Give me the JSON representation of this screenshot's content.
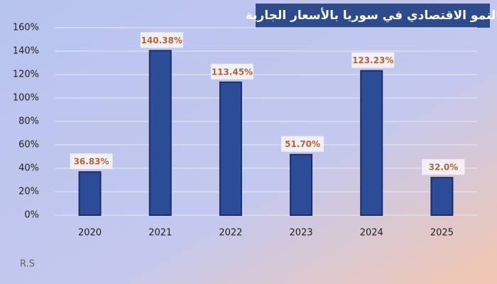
{
  "chart_data": {
    "type": "bar",
    "title": "النمو الاقتصادي في سوريا بالأسعار الجارية",
    "categories": [
      "2020",
      "2021",
      "2022",
      "2023",
      "2024",
      "2025"
    ],
    "values": [
      36.83,
      140.38,
      113.45,
      51.7,
      123.23,
      32.0
    ],
    "value_labels": [
      "36.83%",
      "140.38%",
      "113.45%",
      "51.70%",
      "123.23%",
      "32.0%"
    ],
    "color": "#2c4c98",
    "ylim": [
      0,
      160
    ],
    "yticks": [
      {
        "value": 0,
        "label": "0%"
      },
      {
        "value": 20,
        "label": "20%"
      },
      {
        "value": 40,
        "label": "40%"
      },
      {
        "value": 60,
        "label": "60%"
      },
      {
        "value": 80,
        "label": "80%"
      },
      {
        "value": 100,
        "label": "100%"
      },
      {
        "value": 120,
        "label": "120%"
      },
      {
        "value": 140,
        "label": "140%"
      },
      {
        "value": 160,
        "label": "160%"
      }
    ],
    "grid": true,
    "annotation": "R.S"
  }
}
